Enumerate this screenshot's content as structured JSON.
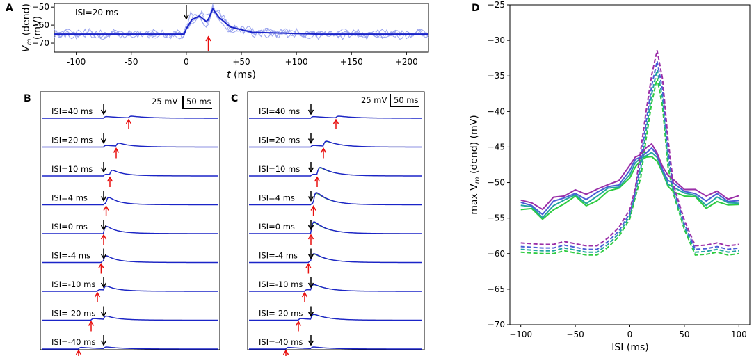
{
  "panels": {
    "A": "A",
    "B": "B",
    "C": "C",
    "D": "D"
  },
  "chart_data": [
    {
      "id": "A",
      "type": "line",
      "annotation": "ISI=20 ms",
      "xlabel_t": "t",
      "xlabel_unit": "(ms)",
      "ylabel_line1_sym": "V",
      "ylabel_line1_sub": "m",
      "ylabel_line1_rest": "(dend)",
      "ylabel_line2": "(mV)",
      "xlim": [
        -120,
        220
      ],
      "ylim": [
        -75,
        -48
      ],
      "xticks": [
        -100,
        -50,
        0,
        50,
        100,
        150,
        200
      ],
      "xtick_labels": [
        "-100",
        "-50",
        "0",
        "+50",
        "+100",
        "+150",
        "+200"
      ],
      "yticks": [
        -50,
        -60,
        -70
      ],
      "ytick_labels": [
        "−50",
        "−60",
        "−70"
      ],
      "mean_trace": {
        "x": [
          -120,
          -2,
          0,
          5,
          12,
          18,
          20,
          24,
          30,
          40,
          60,
          90,
          120,
          220
        ],
        "y": [
          -65,
          -65,
          -62,
          -57,
          -55,
          -58,
          -57,
          -51,
          -56,
          -61,
          -64,
          -64.5,
          -65,
          -65
        ]
      },
      "stim_black_ms": 0,
      "stim_red_ms": 20
    },
    {
      "id": "B",
      "type": "line",
      "scalebar_v": "25 mV",
      "scalebar_t": "50 ms",
      "traces": [
        {
          "label": "ISI=40 ms",
          "isi": 40,
          "peak": 3
        },
        {
          "label": "ISI=20 ms",
          "isi": 20,
          "peak": 6
        },
        {
          "label": "ISI=10 ms",
          "isi": 10,
          "peak": 12
        },
        {
          "label": "ISI=4 ms",
          "isi": 4,
          "peak": 18
        },
        {
          "label": "ISI=0 ms",
          "isi": 0,
          "peak": 17
        },
        {
          "label": "ISI=-4 ms",
          "isi": -4,
          "peak": 15
        },
        {
          "label": "ISI=-10 ms",
          "isi": -10,
          "peak": 10
        },
        {
          "label": "ISI=-20 ms",
          "isi": -20,
          "peak": 7
        },
        {
          "label": "ISI=-40 ms",
          "isi": -40,
          "peak": 5
        }
      ]
    },
    {
      "id": "C",
      "type": "line",
      "scalebar_v": "25 mV",
      "scalebar_t": "50 ms",
      "traces": [
        {
          "label": "ISI=40 ms",
          "isi": 40,
          "peak": 8
        },
        {
          "label": "ISI=20 ms",
          "isi": 20,
          "peak": 12
        },
        {
          "label": "ISI=10 ms",
          "isi": 10,
          "peak": 20
        },
        {
          "label": "ISI=4 ms",
          "isi": 4,
          "peak": 32
        },
        {
          "label": "ISI=0 ms",
          "isi": 0,
          "peak": 30
        },
        {
          "label": "ISI=-4 ms",
          "isi": -4,
          "peak": 20
        },
        {
          "label": "ISI=-10 ms",
          "isi": -10,
          "peak": 14
        },
        {
          "label": "ISI=-20 ms",
          "isi": -20,
          "peak": 12
        },
        {
          "label": "ISI=-40 ms",
          "isi": -40,
          "peak": 12
        }
      ]
    },
    {
      "id": "D",
      "type": "line",
      "xlabel": "ISI (ms)",
      "ylabel_pre": "max V",
      "ylabel_sub": "m",
      "ylabel_post": " (dend) (mV)",
      "xlim": [
        -110,
        110
      ],
      "ylim": [
        -70,
        -25
      ],
      "xticks": [
        -100,
        -50,
        0,
        50,
        100
      ],
      "xtick_labels": [
        "−100",
        "−50",
        "0",
        "50",
        "100"
      ],
      "yticks": [
        -70,
        -65,
        -60,
        -55,
        -50,
        -45,
        -40,
        -35,
        -30,
        -25
      ],
      "ytick_labels": [
        "−70",
        "−65",
        "−60",
        "−55",
        "−50",
        "−45",
        "−40",
        "−35",
        "−30",
        "−25"
      ],
      "x": [
        -100,
        -90,
        -80,
        -70,
        -60,
        -50,
        -40,
        -30,
        -20,
        -10,
        0,
        5,
        10,
        15,
        20,
        25,
        30,
        35,
        40,
        50,
        60,
        70,
        80,
        90,
        100
      ],
      "solid_base": [
        -53.2,
        -53.3,
        -54.5,
        -53,
        -52.5,
        -51.5,
        -52.5,
        -51.8,
        -50.8,
        -50.3,
        -48.5,
        -47.2,
        -46.5,
        -45.8,
        -45.5,
        -46.5,
        -48.2,
        -49.8,
        -50.5,
        -51.5,
        -51.5,
        -52.8,
        -52,
        -52.8,
        -52.5
      ],
      "dashed_base": [
        -59.2,
        -59.3,
        -59.4,
        -59.4,
        -59,
        -59.3,
        -59.6,
        -59.6,
        -58.5,
        -57,
        -54.5,
        -51.5,
        -47.5,
        -42,
        -37,
        -33.5,
        -37.5,
        -46,
        -51,
        -56,
        -59.6,
        -59.5,
        -59.2,
        -59.6,
        -59.4
      ],
      "series": [
        {
          "name": "green",
          "color": "#2ecc40",
          "offset": -0.6
        },
        {
          "name": "teal",
          "color": "#23a3a0",
          "offset": -0.2
        },
        {
          "name": "blue",
          "color": "#4a5ed6",
          "offset": 0.2
        },
        {
          "name": "purple",
          "color": "#9b2fa8",
          "offset": 0.7
        }
      ]
    }
  ]
}
